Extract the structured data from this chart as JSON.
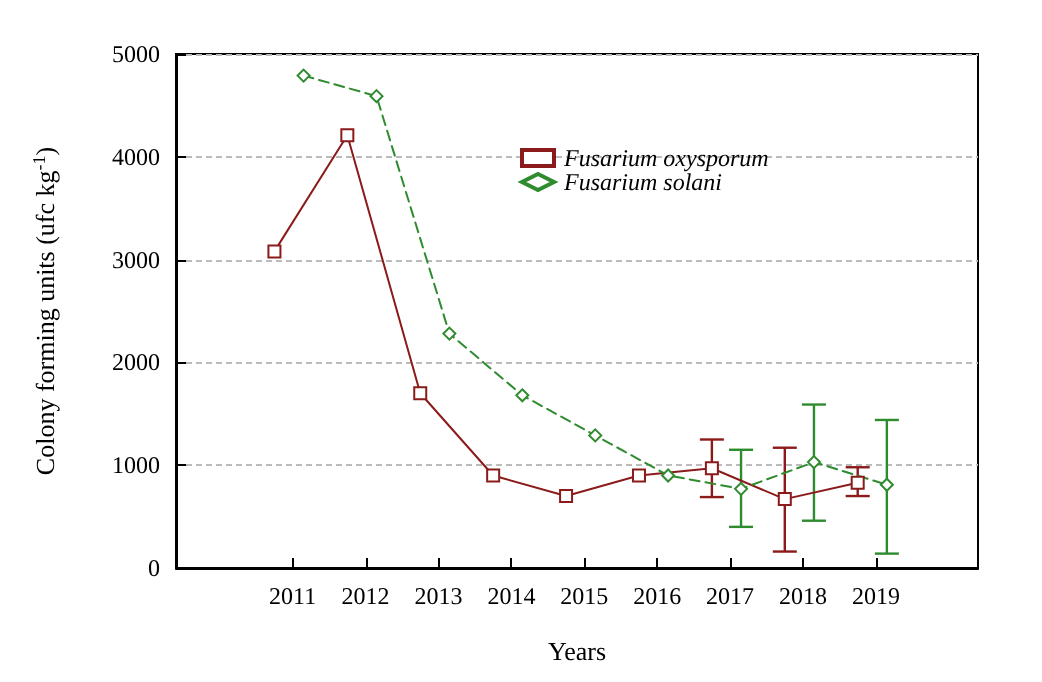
{
  "chart_data": {
    "type": "line",
    "xlabel": "Years",
    "ylabel": "Colony forming units (ufc kg$^{-1}$)",
    "xlim": [
      2009.4,
      2020.4
    ],
    "xticks": [
      2011,
      2012,
      2013,
      2014,
      2015,
      2016,
      2017,
      2018,
      2019
    ],
    "ylim": [
      0,
      5000
    ],
    "yticks": [
      0,
      1000,
      2000,
      3000,
      4000,
      5000
    ],
    "grid": "y",
    "legend": "top",
    "series": [
      {
        "name": "Fusarium oxysporum",
        "color": "#8b1a1a",
        "marker": "square",
        "line_style": "solid",
        "x": [
          2010.75,
          2011.75,
          2012.75,
          2013.75,
          2014.75,
          2015.75,
          2016.75,
          2017.75,
          2018.75
        ],
        "values": [
          3080,
          4210,
          1700,
          900,
          700,
          900,
          970,
          670,
          830
        ],
        "errors": [
          null,
          null,
          null,
          null,
          null,
          null,
          [
            690,
            1250
          ],
          [
            160,
            1170
          ],
          [
            700,
            980
          ]
        ]
      },
      {
        "name": "Fusarium solani",
        "color": "#2e8b2e",
        "marker": "diamond",
        "line_style": "dashed",
        "x": [
          2011.15,
          2012.15,
          2013.15,
          2014.15,
          2015.15,
          2016.15,
          2017.15,
          2018.15,
          2019.15
        ],
        "values": [
          4790,
          4590,
          2280,
          1680,
          1290,
          900,
          770,
          1030,
          810
        ],
        "errors": [
          null,
          null,
          null,
          null,
          null,
          null,
          [
            400,
            1150
          ],
          [
            460,
            1590
          ],
          [
            140,
            1440
          ]
        ]
      }
    ]
  }
}
